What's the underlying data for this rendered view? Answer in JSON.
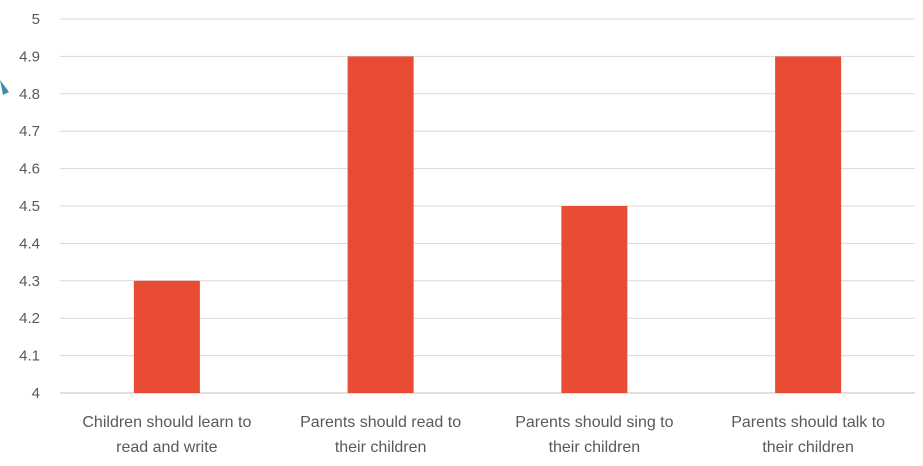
{
  "chart_data": {
    "type": "bar",
    "categories": [
      [
        "Children should learn to",
        "read and write"
      ],
      [
        "Parents should read to",
        "their children"
      ],
      [
        "Parents should sing to",
        "their children"
      ],
      [
        "Parents should talk to",
        "their children"
      ]
    ],
    "values": [
      4.3,
      4.9,
      4.5,
      4.9
    ],
    "ylim": [
      4,
      5
    ],
    "yticks": [
      "4",
      "4.1",
      "4.2",
      "4.3",
      "4.4",
      "4.5",
      "4.6",
      "4.7",
      "4.8",
      "4.9",
      "5"
    ],
    "grid": true,
    "legend": "none",
    "colors": {
      "bar": "#e84c34",
      "grid": "#d9d9d9",
      "text": "#595959",
      "edge_marker": "#3b8fa6"
    }
  }
}
